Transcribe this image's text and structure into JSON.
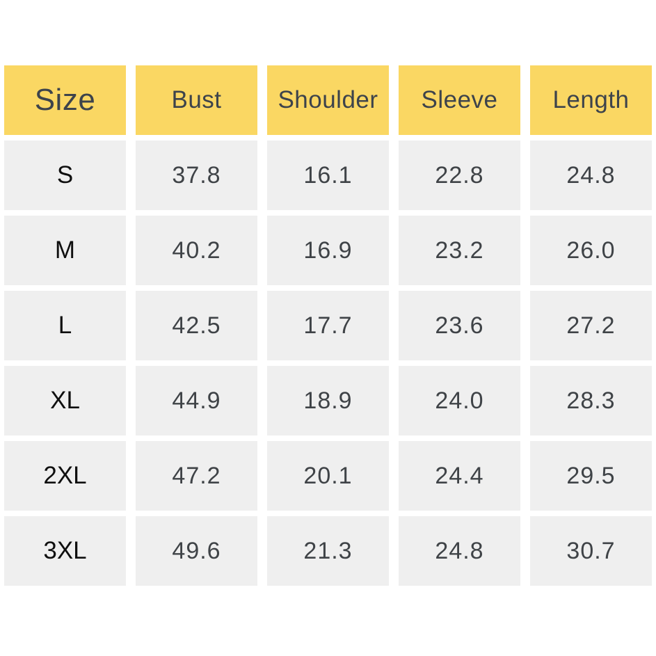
{
  "colors": {
    "header_bg": "#FAD763",
    "cell_bg": "#EFEFEF",
    "header_text": "#3D434B",
    "value_text": "#3F4347",
    "size_text": "#0F0F0F",
    "page_bg": "#FFFFFF"
  },
  "size_chart": {
    "columns": [
      "Size",
      "Bust",
      "Shoulder",
      "Sleeve",
      "Length"
    ],
    "rows": [
      {
        "size": "S",
        "values": [
          "37.8",
          "16.1",
          "22.8",
          "24.8"
        ]
      },
      {
        "size": "M",
        "values": [
          "40.2",
          "16.9",
          "23.2",
          "26.0"
        ]
      },
      {
        "size": "L",
        "values": [
          "42.5",
          "17.7",
          "23.6",
          "27.2"
        ]
      },
      {
        "size": "XL",
        "values": [
          "44.9",
          "18.9",
          "24.0",
          "28.3"
        ]
      },
      {
        "size": "2XL",
        "values": [
          "47.2",
          "20.1",
          "24.4",
          "29.5"
        ]
      },
      {
        "size": "3XL",
        "values": [
          "49.6",
          "21.3",
          "24.8",
          "30.7"
        ]
      }
    ]
  },
  "chart_data": {
    "type": "table",
    "columns": [
      "Size",
      "Bust",
      "Shoulder",
      "Sleeve",
      "Length"
    ],
    "rows": [
      [
        "S",
        37.8,
        16.1,
        22.8,
        24.8
      ],
      [
        "M",
        40.2,
        16.9,
        23.2,
        26.0
      ],
      [
        "L",
        42.5,
        17.7,
        23.6,
        27.2
      ],
      [
        "XL",
        44.9,
        18.9,
        24.0,
        28.3
      ],
      [
        "2XL",
        47.2,
        20.1,
        24.4,
        29.5
      ],
      [
        "3XL",
        49.6,
        21.3,
        24.8,
        30.7
      ]
    ],
    "layout": {
      "header_row": true,
      "grid": "separated-cells",
      "legend": "none"
    }
  }
}
